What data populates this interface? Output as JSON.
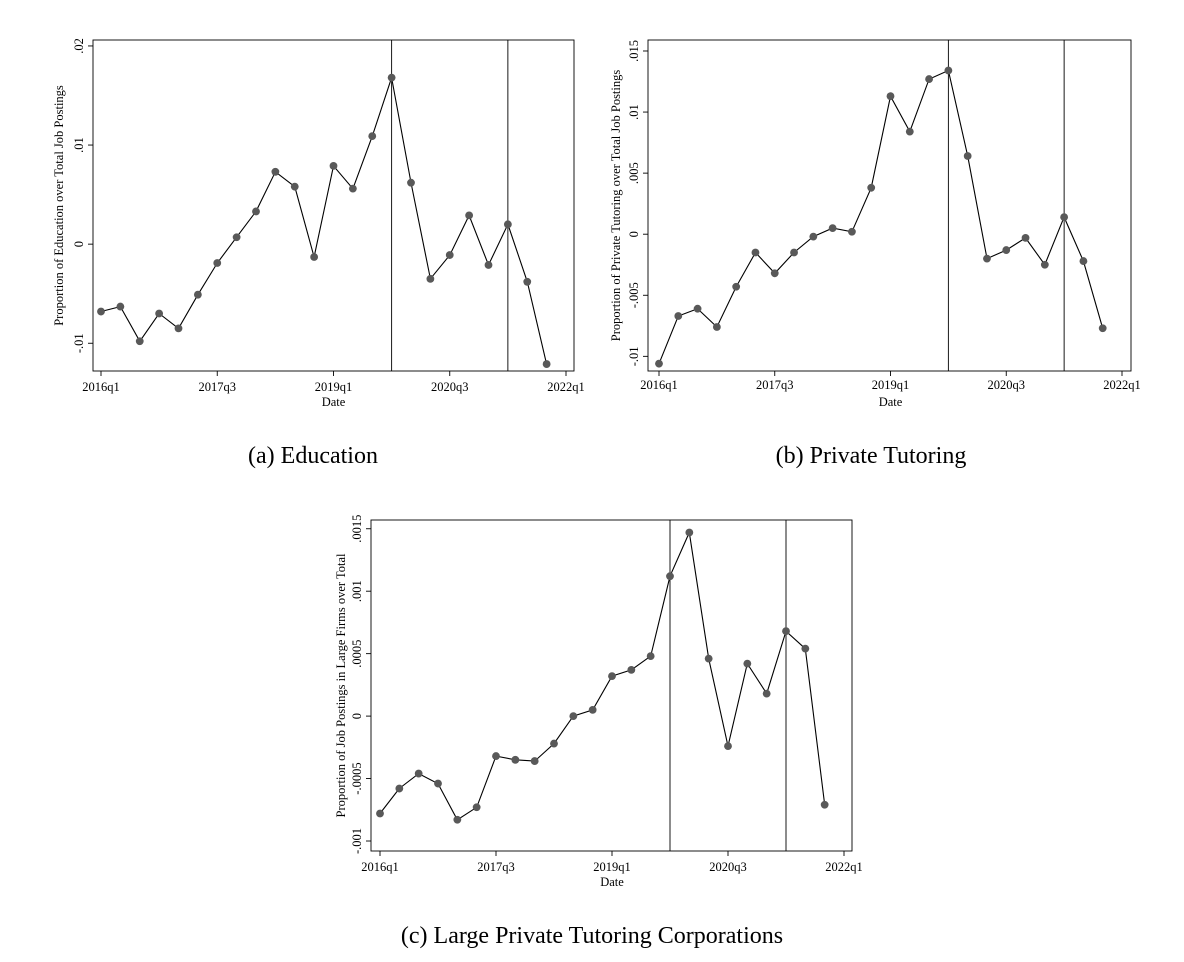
{
  "chart_data": [
    {
      "type": "line",
      "caption": "(a)  Education",
      "xlabel": "Date",
      "ylabel": "Proportion of Education over Total Job Postings",
      "x_ticks": [
        "2016q1",
        "2017q3",
        "2019q1",
        "2020q3",
        "2022q1"
      ],
      "y_ticks": [
        "-.01",
        "0",
        ".01",
        ".02"
      ],
      "y_tick_values": [
        -0.01,
        0,
        0.01,
        0.02
      ],
      "ylim": [
        -0.0128,
        0.0206
      ],
      "vertical_lines": [
        "2019q4",
        "2021q2"
      ],
      "color": "#595959",
      "series": [
        {
          "x": [
            "2016q1",
            "2016q2",
            "2016q3",
            "2016q4",
            "2017q1",
            "2017q2",
            "2017q3",
            "2017q4",
            "2018q1",
            "2018q2",
            "2018q3",
            "2018q4",
            "2019q1",
            "2019q2",
            "2019q3",
            "2019q4",
            "2020q1",
            "2020q2",
            "2020q3",
            "2020q4",
            "2021q1",
            "2021q2",
            "2021q3",
            "2021q4"
          ],
          "values": [
            -0.0068,
            -0.0063,
            -0.0098,
            -0.007,
            -0.0085,
            -0.0051,
            -0.0019,
            0.0007,
            0.0033,
            0.0073,
            0.0058,
            -0.0013,
            0.0079,
            0.0056,
            0.0109,
            0.0168,
            0.0062,
            -0.0035,
            -0.0011,
            0.0029,
            -0.0021,
            0.002,
            -0.0038,
            -0.0121
          ]
        }
      ]
    },
    {
      "type": "line",
      "caption": "(b)  Private Tutoring",
      "xlabel": "Date",
      "ylabel": "Proportion of Private Tutoring over Total Job Postings",
      "x_ticks": [
        "2016q1",
        "2017q3",
        "2019q1",
        "2020q3",
        "2022q1"
      ],
      "y_ticks": [
        "-.01",
        "-.005",
        "0",
        ".005",
        ".01",
        ".015"
      ],
      "y_tick_values": [
        -0.01,
        -0.005,
        0,
        0.005,
        0.01,
        0.015
      ],
      "ylim": [
        -0.0112,
        0.0159
      ],
      "vertical_lines": [
        "2019q4",
        "2021q2"
      ],
      "color": "#595959",
      "series": [
        {
          "x": [
            "2016q1",
            "2016q2",
            "2016q3",
            "2016q4",
            "2017q1",
            "2017q2",
            "2017q3",
            "2017q4",
            "2018q1",
            "2018q2",
            "2018q3",
            "2018q4",
            "2019q1",
            "2019q2",
            "2019q3",
            "2019q4",
            "2020q1",
            "2020q2",
            "2020q3",
            "2020q4",
            "2021q1",
            "2021q2",
            "2021q3",
            "2021q4"
          ],
          "values": [
            -0.0106,
            -0.0067,
            -0.0061,
            -0.0076,
            -0.0043,
            -0.0015,
            -0.0032,
            -0.0015,
            -0.0002,
            0.0005,
            0.0002,
            0.0038,
            0.0113,
            0.0084,
            0.0127,
            0.0134,
            0.0064,
            -0.002,
            -0.0013,
            -0.0003,
            -0.0025,
            0.0014,
            -0.0022,
            -0.0077
          ]
        }
      ]
    },
    {
      "type": "line",
      "caption": "(c)  Large Private Tutoring Corporations",
      "xlabel": "Date",
      "ylabel": "Proportion of Job Postings in Large Firms over Total",
      "x_ticks": [
        "2016q1",
        "2017q3",
        "2019q1",
        "2020q3",
        "2022q1"
      ],
      "y_ticks": [
        "-.001",
        "-.0005",
        "0",
        ".0005",
        ".001",
        ".0015"
      ],
      "y_tick_values": [
        -0.001,
        -0.0005,
        0,
        0.0005,
        0.001,
        0.0015
      ],
      "ylim": [
        -0.00108,
        0.00157
      ],
      "vertical_lines": [
        "2019q4",
        "2021q2"
      ],
      "color": "#595959",
      "series": [
        {
          "x": [
            "2016q1",
            "2016q2",
            "2016q3",
            "2016q4",
            "2017q1",
            "2017q2",
            "2017q3",
            "2017q4",
            "2018q1",
            "2018q2",
            "2018q3",
            "2018q4",
            "2019q1",
            "2019q2",
            "2019q3",
            "2019q4",
            "2020q1",
            "2020q2",
            "2020q3",
            "2020q4",
            "2021q1",
            "2021q2",
            "2021q3",
            "2021q4"
          ],
          "values": [
            -0.00078,
            -0.00058,
            -0.00046,
            -0.00054,
            -0.00083,
            -0.00073,
            -0.00032,
            -0.00035,
            -0.00036,
            -0.00022,
            0.0,
            5e-05,
            0.00032,
            0.00037,
            0.00048,
            0.00112,
            0.00147,
            0.00046,
            -0.00024,
            0.00042,
            0.00018,
            0.00068,
            0.00054,
            -0.00071
          ]
        }
      ]
    }
  ]
}
